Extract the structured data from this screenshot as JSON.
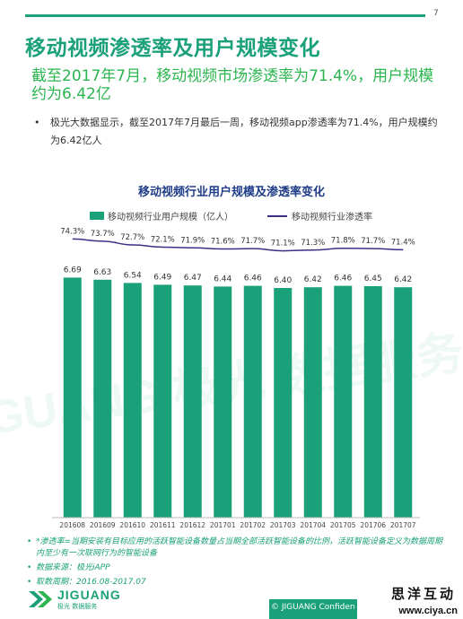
{
  "page": {
    "number": "7",
    "title": "移动视频渗透率及用户规模变化",
    "subtitle": "截至2017年7月，移动视频市场渗透率为71.4%，用户规模约为6.42亿",
    "bullet": "极光大数据显示，截至2017年7月最后一周，移动视频app渗透率为71.4%，用户规模约为6.42亿人"
  },
  "chart_data": {
    "type": "bar",
    "title": "移动视频行业用户规模及渗透率变化",
    "categories": [
      "201608",
      "201609",
      "201610",
      "201611",
      "201612",
      "201701",
      "201702",
      "201703",
      "201704",
      "201705",
      "201706",
      "201707"
    ],
    "series": [
      {
        "name": "移动视频行业用户规模（亿人）",
        "type": "bar",
        "values": [
          6.69,
          6.63,
          6.54,
          6.49,
          6.47,
          6.44,
          6.46,
          6.4,
          6.42,
          6.46,
          6.45,
          6.42
        ],
        "labels": [
          "6.69",
          "6.63",
          "6.54",
          "6.49",
          "6.47",
          "6.44",
          "6.46",
          "6.40",
          "6.42",
          "6.46",
          "6.45",
          "6.42"
        ]
      },
      {
        "name": "移动视频行业渗透率",
        "type": "line",
        "values": [
          74.3,
          73.7,
          72.7,
          72.1,
          71.9,
          71.6,
          71.7,
          71.1,
          71.3,
          71.8,
          71.7,
          71.4
        ],
        "labels": [
          "74.3%",
          "73.7%",
          "72.7%",
          "72.1%",
          "71.9%",
          "71.6%",
          "71.7%",
          "71.1%",
          "71.3%",
          "71.8%",
          "71.7%",
          "71.4%"
        ]
      }
    ],
    "legend_position": "top",
    "grid": false,
    "colors": {
      "bar": "#1aa179",
      "line": "#3a2f83"
    }
  },
  "notes": {
    "definition": "*渗透率=当期安装有目标应用的活跃智能设备数量占当期全部活跃智能设备的比例，活跃智能设备定义为数据周期内至少有一次联网行为的智能设备",
    "source": "数据来源：极光iAPP",
    "period": "取数周期：2016.08-2017.07"
  },
  "footer": {
    "logo_name": "JIGUANG",
    "logo_sub": "极光  数据服务",
    "copyright": "© JIGUANG Confiden",
    "site_name": "思洋互动",
    "site_url": "www.ciya.cn"
  },
  "watermark": {
    "text": "JIGUANG 极光 数据服务"
  },
  "colors": {
    "accent": "#1aa179",
    "subtitle": "#2bb54f",
    "chart_title": "#1f3c88"
  }
}
